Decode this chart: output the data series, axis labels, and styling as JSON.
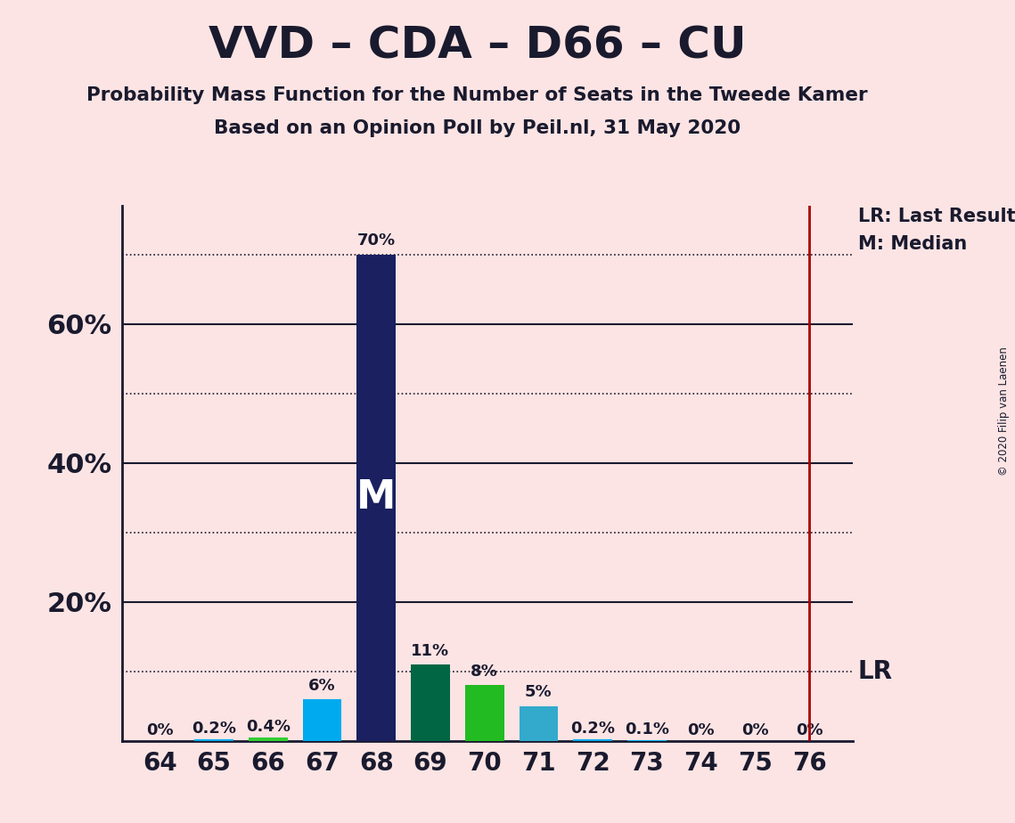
{
  "title": "VVD – CDA – D66 – CU",
  "subtitle1": "Probability Mass Function for the Number of Seats in the Tweede Kamer",
  "subtitle2": "Based on an Opinion Poll by Peil.nl, 31 May 2020",
  "copyright": "© 2020 Filip van Laenen",
  "seats": [
    64,
    65,
    66,
    67,
    68,
    69,
    70,
    71,
    72,
    73,
    74,
    75,
    76
  ],
  "probabilities": [
    0.0,
    0.2,
    0.4,
    6.0,
    70.0,
    11.0,
    8.0,
    5.0,
    0.2,
    0.1,
    0.0,
    0.0,
    0.0
  ],
  "bar_colors": [
    "#00aaee",
    "#00aaee",
    "#32cd32",
    "#00aaee",
    "#1a2060",
    "#006644",
    "#22bb22",
    "#33aacc",
    "#00aaee",
    "#00aaee",
    "#00aaee",
    "#00aaee",
    "#fce4e4"
  ],
  "median_seat": 68,
  "lr_seat": 76,
  "background_color": "#fce4e4",
  "axis_color": "#1a1a2e",
  "ylim": [
    0,
    77
  ],
  "lr_label": "LR: Last Result",
  "m_label": "M: Median",
  "lr_short": "LR",
  "m_short": "M",
  "solid_gridlines": [
    20,
    40,
    60
  ],
  "dotted_gridlines": [
    10,
    30,
    50,
    70
  ]
}
